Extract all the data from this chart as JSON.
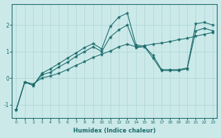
{
  "xlabel": "Humidex (Indice chaleur)",
  "xlim": [
    -0.5,
    23.5
  ],
  "ylim": [
    -1.5,
    2.8
  ],
  "background_color": "#cce9e9",
  "grid_color": "#aad4d4",
  "line_color": "#1a6b6b",
  "line1_x": [
    0,
    1,
    2,
    3,
    4,
    5,
    6,
    7,
    8,
    9,
    10,
    11,
    12,
    13,
    14,
    15,
    16,
    17,
    18,
    19,
    20,
    21,
    22,
    23
  ],
  "line1_y": [
    -1.2,
    -0.15,
    -0.28,
    0.18,
    0.35,
    0.55,
    0.75,
    0.95,
    1.15,
    1.3,
    1.1,
    1.95,
    2.3,
    2.45,
    1.25,
    1.2,
    0.85,
    0.32,
    0.32,
    0.32,
    0.38,
    2.05,
    2.1,
    2.0
  ],
  "line2_x": [
    0,
    1,
    2,
    3,
    4,
    5,
    6,
    7,
    8,
    9,
    10,
    11,
    12,
    13,
    14,
    15,
    16,
    17,
    18,
    19,
    20,
    21,
    22,
    23
  ],
  "line2_y": [
    -1.2,
    -0.15,
    -0.28,
    0.12,
    0.22,
    0.42,
    0.6,
    0.82,
    1.0,
    1.18,
    1.0,
    1.55,
    1.82,
    2.0,
    1.15,
    1.18,
    0.75,
    0.28,
    0.28,
    0.28,
    0.35,
    1.78,
    1.88,
    1.78
  ],
  "line3_x": [
    0,
    1,
    2,
    3,
    4,
    5,
    6,
    7,
    8,
    9,
    10,
    11,
    12,
    13,
    14,
    15,
    16,
    17,
    18,
    19,
    20,
    21,
    22,
    23
  ],
  "line3_y": [
    -1.2,
    -0.15,
    -0.22,
    0.0,
    0.08,
    0.18,
    0.32,
    0.48,
    0.62,
    0.78,
    0.9,
    1.02,
    1.18,
    1.28,
    1.18,
    1.22,
    1.28,
    1.32,
    1.38,
    1.45,
    1.5,
    1.58,
    1.65,
    1.72
  ],
  "yticks": [
    -1,
    0,
    1,
    2
  ],
  "xticks": [
    0,
    1,
    2,
    3,
    4,
    5,
    6,
    7,
    8,
    9,
    10,
    11,
    12,
    13,
    14,
    15,
    16,
    17,
    18,
    19,
    20,
    21,
    22,
    23
  ]
}
